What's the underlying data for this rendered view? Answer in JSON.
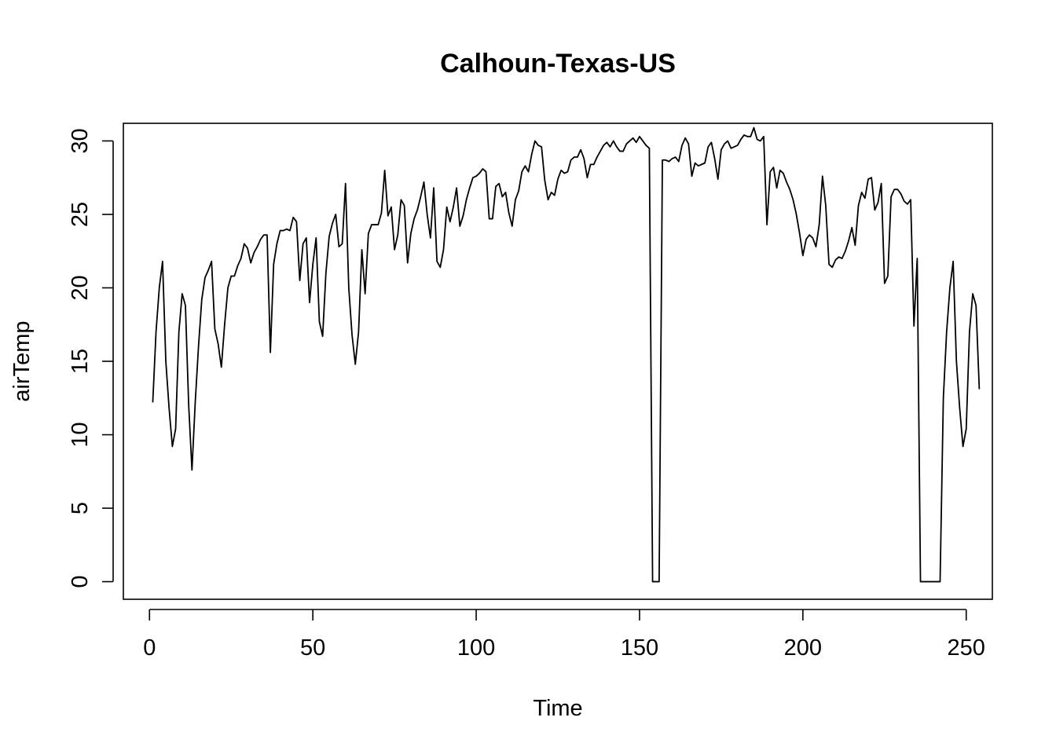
{
  "chart_data": {
    "type": "line",
    "title": "Calhoun-Texas-US",
    "xlabel": "Time",
    "ylabel": "airTemp",
    "xlim": [
      -8,
      258
    ],
    "ylim": [
      -1.2,
      31.2
    ],
    "x_ticks": [
      0,
      50,
      100,
      150,
      200,
      250
    ],
    "y_ticks": [
      0,
      5,
      10,
      15,
      20,
      25,
      30
    ],
    "grid": false,
    "legend": "none",
    "line_color": "#000000",
    "series": [
      {
        "x_start": 1,
        "values": [
          12.2,
          17.0,
          20.0,
          21.8,
          15.0,
          11.8,
          9.2,
          10.4,
          17.0,
          19.6,
          18.8,
          12.0,
          7.6,
          12.2,
          16.0,
          19.2,
          20.7,
          21.2,
          21.8,
          17.2,
          16.2,
          14.6,
          17.5,
          20.0,
          20.8,
          20.8,
          21.5,
          22.0,
          23.0,
          22.7,
          21.7,
          22.4,
          22.8,
          23.3,
          23.6,
          23.6,
          15.6,
          21.6,
          23.0,
          23.9,
          23.9,
          24.0,
          23.9,
          24.8,
          24.5,
          20.5,
          23.0,
          23.4,
          19.0,
          21.6,
          23.4,
          17.7,
          16.7,
          21.0,
          23.5,
          24.4,
          25.0,
          22.8,
          23.0,
          27.1,
          20.0,
          16.8,
          14.8,
          17.0,
          22.6,
          19.6,
          23.7,
          24.3,
          24.3,
          24.3,
          25.1,
          28.0,
          24.9,
          25.5,
          22.6,
          23.6,
          26.0,
          25.6,
          21.7,
          23.7,
          24.7,
          25.3,
          26.2,
          27.2,
          25.0,
          23.4,
          26.8,
          21.8,
          21.4,
          22.6,
          25.5,
          24.5,
          25.5,
          26.8,
          24.2,
          24.9,
          26.0,
          26.8,
          27.5,
          27.6,
          27.8,
          28.1,
          27.9,
          24.7,
          24.7,
          26.9,
          27.1,
          26.2,
          26.5,
          25.1,
          24.2,
          26.0,
          26.6,
          27.9,
          28.3,
          27.9,
          29.1,
          30.0,
          29.7,
          29.6,
          27.3,
          26.0,
          26.5,
          26.3,
          27.4,
          28.0,
          27.8,
          27.9,
          28.7,
          28.9,
          28.9,
          29.4,
          28.8,
          27.5,
          28.4,
          28.4,
          28.9,
          29.3,
          29.7,
          29.9,
          29.6,
          30.0,
          29.6,
          29.3,
          29.3,
          29.8,
          30.0,
          30.2,
          29.9,
          30.3,
          30.0,
          29.7,
          29.5,
          0.0,
          0.0,
          0.0,
          28.7,
          28.7,
          28.6,
          28.8,
          28.9,
          28.6,
          29.7,
          30.2,
          29.8,
          27.6,
          28.5,
          28.3,
          28.4,
          28.5,
          29.6,
          29.9,
          28.8,
          27.4,
          29.4,
          29.8,
          30.0,
          29.5,
          29.6,
          29.7,
          30.1,
          30.4,
          30.3,
          30.3,
          30.9,
          30.1,
          30.0,
          30.3,
          24.3,
          27.9,
          28.2,
          26.8,
          28.0,
          27.8,
          27.2,
          26.7,
          26.0,
          25.0,
          23.7,
          22.2,
          23.3,
          23.6,
          23.4,
          22.8,
          24.3,
          27.6,
          25.6,
          21.6,
          21.4,
          21.9,
          22.1,
          22.0,
          22.5,
          23.2,
          24.1,
          22.9,
          25.6,
          26.5,
          26.1,
          27.4,
          27.5,
          25.3,
          25.8,
          27.1,
          20.3,
          20.8,
          26.2,
          26.7,
          26.7,
          26.4,
          25.9,
          25.7,
          26.0,
          17.4,
          22.0,
          0.0,
          0.0,
          0.0,
          0.0,
          0.0,
          0.0,
          0.0,
          12.5,
          17.0,
          20.0,
          21.8,
          15.0,
          11.8,
          9.2,
          10.4,
          17.0,
          19.6,
          18.8,
          13.1
        ]
      }
    ]
  }
}
